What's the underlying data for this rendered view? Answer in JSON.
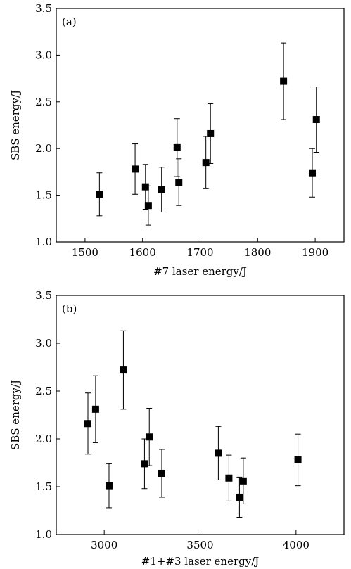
{
  "chart_data": [
    {
      "type": "scatter",
      "panel_label": "(a)",
      "xlabel": "#7 laser energy/J",
      "ylabel": "SBS energy/J",
      "xlim": [
        1450,
        1950
      ],
      "ylim": [
        1.0,
        3.5
      ],
      "xticks": [
        1500,
        1600,
        1700,
        1800,
        1900
      ],
      "yticks": [
        1.0,
        1.5,
        2.0,
        2.5,
        3.0,
        3.5
      ],
      "x_tick_labels": [
        "1500",
        "1600",
        "1700",
        "1800",
        "1900"
      ],
      "y_tick_labels": [
        "1.0",
        "1.5",
        "2.0",
        "2.5",
        "3.0",
        "3.5"
      ],
      "grid": false,
      "points": [
        {
          "x": 1525,
          "y": 1.51,
          "err": 0.23
        },
        {
          "x": 1587,
          "y": 1.78,
          "err": 0.27
        },
        {
          "x": 1605,
          "y": 1.59,
          "err": 0.24
        },
        {
          "x": 1610,
          "y": 1.39,
          "err": 0.21
        },
        {
          "x": 1633,
          "y": 1.56,
          "err": 0.24
        },
        {
          "x": 1660,
          "y": 2.01,
          "err": 0.31
        },
        {
          "x": 1663,
          "y": 1.64,
          "err": 0.25
        },
        {
          "x": 1710,
          "y": 1.85,
          "err": 0.28
        },
        {
          "x": 1718,
          "y": 2.16,
          "err": 0.32
        },
        {
          "x": 1845,
          "y": 2.72,
          "err": 0.41
        },
        {
          "x": 1895,
          "y": 1.74,
          "err": 0.26
        },
        {
          "x": 1902,
          "y": 2.31,
          "err": 0.35
        }
      ]
    },
    {
      "type": "scatter",
      "panel_label": "(b)",
      "xlabel": "#1+#3 laser energy/J",
      "ylabel": "SBS energy/J",
      "xlim": [
        2750,
        4250
      ],
      "ylim": [
        1.0,
        3.5
      ],
      "xticks": [
        3000,
        3500,
        4000
      ],
      "yticks": [
        1.0,
        1.5,
        2.0,
        2.5,
        3.0,
        3.5
      ],
      "x_tick_labels": [
        "3000",
        "3500",
        "4000"
      ],
      "y_tick_labels": [
        "1.0",
        "1.5",
        "2.0",
        "2.5",
        "3.0",
        "3.5"
      ],
      "grid": false,
      "points": [
        {
          "x": 2915,
          "y": 2.16,
          "err": 0.32
        },
        {
          "x": 2955,
          "y": 2.31,
          "err": 0.35
        },
        {
          "x": 3025,
          "y": 1.51,
          "err": 0.23
        },
        {
          "x": 3100,
          "y": 2.72,
          "err": 0.41
        },
        {
          "x": 3210,
          "y": 1.74,
          "err": 0.26
        },
        {
          "x": 3235,
          "y": 2.02,
          "err": 0.3
        },
        {
          "x": 3300,
          "y": 1.64,
          "err": 0.25
        },
        {
          "x": 3595,
          "y": 1.85,
          "err": 0.28
        },
        {
          "x": 3650,
          "y": 1.59,
          "err": 0.24
        },
        {
          "x": 3705,
          "y": 1.39,
          "err": 0.21
        },
        {
          "x": 3725,
          "y": 1.56,
          "err": 0.24
        },
        {
          "x": 4010,
          "y": 1.78,
          "err": 0.27
        }
      ]
    }
  ]
}
